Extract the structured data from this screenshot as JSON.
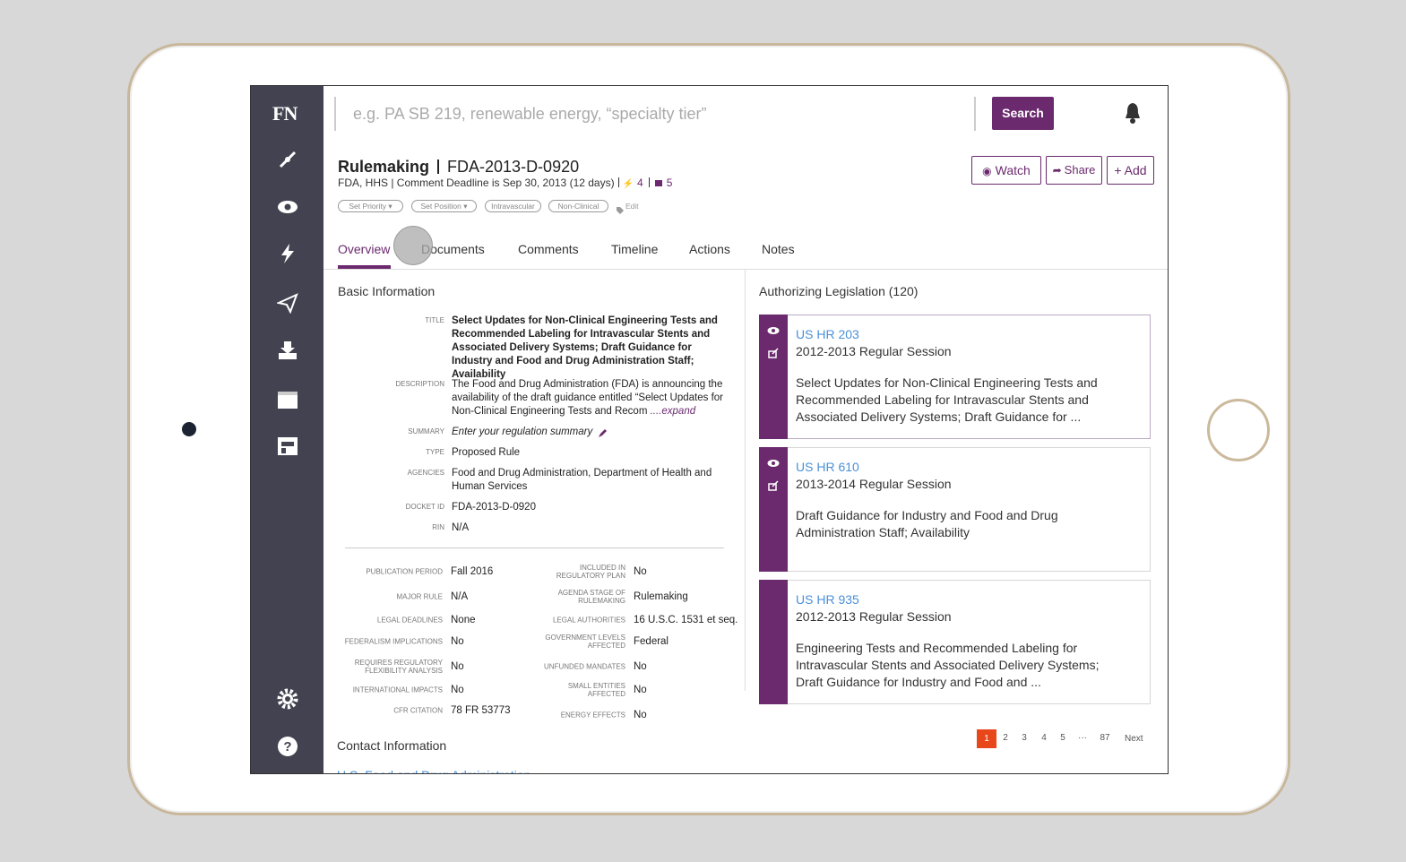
{
  "brand": "FN",
  "search": {
    "placeholder": "e.g. PA SB 219, renewable energy, “specialty tier”",
    "button": "Search"
  },
  "header": {
    "type": "Rulemaking",
    "docket": "FDA-2013-D-0920",
    "meta": "FDA, HHS | Comment Deadline is Sep 30, 2013 (12 days)",
    "actions_count": 4,
    "notes_count": 5,
    "buttons": [
      "Watch",
      "Share",
      "+ Add"
    ],
    "tags": [
      "Set Priority",
      "Set Position",
      "Intravascular",
      "Non-Clinical"
    ],
    "edit": "Edit"
  },
  "tabs": [
    "Overview",
    "Documents",
    "Comments",
    "Timeline",
    "Actions",
    "Notes"
  ],
  "basic_info": {
    "heading": "Basic Information",
    "fields": [
      {
        "label": "TITLE",
        "value": "Select Updates for Non-Clinical Engineering Tests and Recommended Labeling for Intravascular Stents and Associated Delivery Systems; Draft Guidance for Industry and Food and Drug Administration Staff; Availability"
      },
      {
        "label": "DESCRIPTION",
        "value": "The Food and Drug Administration (FDA) is announcing the availability of the draft guidance entitled “Select Updates for Non-Clinical Engineering Tests and Recom",
        "more": "....expand"
      },
      {
        "label": "SUMMARY",
        "value": "Enter your regulation summary"
      },
      {
        "label": "TYPE",
        "value": "Proposed Rule"
      },
      {
        "label": "AGENCIES",
        "value": "Food and Drug Administration, Department of Health and Human Services"
      },
      {
        "label": "DOCKET ID",
        "value": "FDA-2013-D-0920"
      },
      {
        "label": "RIN",
        "value": "N/A"
      }
    ]
  },
  "details": {
    "left": [
      {
        "label": "PUBLICATION PERIOD",
        "value": "Fall 2016"
      },
      {
        "label": "MAJOR RULE",
        "value": "N/A"
      },
      {
        "label": "LEGAL DEADLINES",
        "value": "None"
      },
      {
        "label": "FEDERALISM IMPLICATIONS",
        "value": "No"
      },
      {
        "label": "REQUIRES REGULATORY FLEXIBILITY ANALYSIS",
        "value": "No"
      },
      {
        "label": "INTERNATIONAL IMPACTS",
        "value": "No"
      },
      {
        "label": "CFR CITATION",
        "value": "78 FR 53773"
      }
    ],
    "right": [
      {
        "label": "INCLUDED IN REGULATORY PLAN",
        "value": "No"
      },
      {
        "label": "AGENDA STAGE OF RULEMAKING",
        "value": "Rulemaking"
      },
      {
        "label": "LEGAL AUTHORITIES",
        "value": "16 U.S.C. 1531 et seq."
      },
      {
        "label": "GOVERNMENT LEVELS AFFECTED",
        "value": "Federal"
      },
      {
        "label": "UNFUNDED MANDATES",
        "value": "No"
      },
      {
        "label": "SMALL ENTITIES AFFECTED",
        "value": "No"
      },
      {
        "label": "ENERGY EFFECTS",
        "value": "No"
      }
    ]
  },
  "contact": {
    "heading": "Contact Information",
    "link": "U.S. Food and Drug Administration"
  },
  "legislation": {
    "heading": "Authorizing Legislation (120)",
    "cards": [
      {
        "bill": "US HR 203",
        "session": "2012-2013 Regular Session",
        "description": "Select Updates for Non-Clinical Engineering Tests and Recommended Labeling for Intravascular Stents and Associated Delivery Systems; Draft Guidance for ..."
      },
      {
        "bill": "US HR 610",
        "session": "2013-2014 Regular Session",
        "description": "Draft Guidance for Industry and Food and Drug Administration Staff; Availability"
      },
      {
        "bill": "US HR 935",
        "session": "2012-2013 Regular Session",
        "description": "Engineering Tests and Recommended Labeling for Intravascular Stents and Associated Delivery Systems; Draft Guidance for Industry and Food and ..."
      }
    ]
  },
  "pagination": {
    "pages": [
      1,
      2,
      3,
      4,
      5,
      "···",
      87
    ],
    "next": "Next"
  }
}
